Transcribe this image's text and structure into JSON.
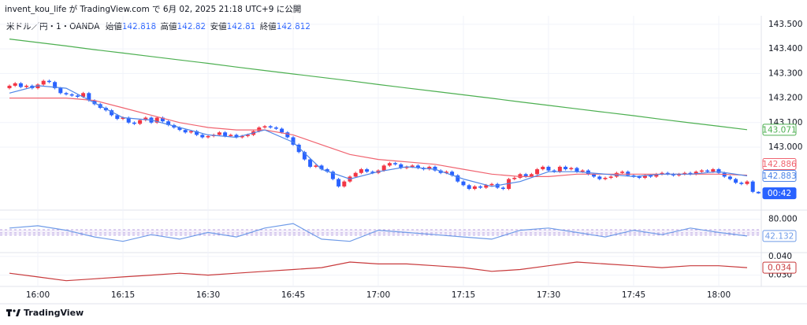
{
  "header": "invent_kou_life が TradingView.com で 6月 02, 2025 21:18 UTC+9 に公開",
  "footer": "TradingView",
  "chart_data": [
    {
      "type": "candlestick",
      "title": "米ドル／円・1・OANDA",
      "ohlc_labels": [
        "始値",
        "高値",
        "安値",
        "終値"
      ],
      "up_color": "#f23645",
      "down_color": "#2962ff",
      "countdown": "00:42",
      "grid": true,
      "x": [
        "15:55",
        "15:56",
        "15:57",
        "15:58",
        "15:59",
        "16:00",
        "16:01",
        "16:02",
        "16:03",
        "16:04",
        "16:05",
        "16:06",
        "16:07",
        "16:08",
        "16:09",
        "16:10",
        "16:11",
        "16:12",
        "16:13",
        "16:14",
        "16:15",
        "16:16",
        "16:17",
        "16:18",
        "16:19",
        "16:20",
        "16:21",
        "16:22",
        "16:23",
        "16:24",
        "16:25",
        "16:26",
        "16:27",
        "16:28",
        "16:29",
        "16:30",
        "16:31",
        "16:32",
        "16:33",
        "16:34",
        "16:35",
        "16:36",
        "16:37",
        "16:38",
        "16:39",
        "16:40",
        "16:41",
        "16:42",
        "16:43",
        "16:44",
        "16:45",
        "16:46",
        "16:47",
        "16:48",
        "16:49",
        "16:50",
        "16:51",
        "16:52",
        "16:53",
        "16:54",
        "16:55",
        "16:56",
        "16:57",
        "16:58",
        "16:59",
        "17:00",
        "17:01",
        "17:02",
        "17:03",
        "17:04",
        "17:05",
        "17:06",
        "17:07",
        "17:08",
        "17:09",
        "17:10",
        "17:11",
        "17:12",
        "17:13",
        "17:14",
        "17:15",
        "17:16",
        "17:17",
        "17:18",
        "17:19",
        "17:20",
        "17:21",
        "17:22",
        "17:23",
        "17:24",
        "17:25",
        "17:26",
        "17:27",
        "17:28",
        "17:29",
        "17:30",
        "17:31",
        "17:32",
        "17:33",
        "17:34",
        "17:35",
        "17:36",
        "17:37",
        "17:38",
        "17:39",
        "17:40",
        "17:41",
        "17:42",
        "17:43",
        "17:44",
        "17:45",
        "17:46",
        "17:47",
        "17:48",
        "17:49",
        "17:50",
        "17:51",
        "17:52",
        "17:53",
        "17:54",
        "17:55",
        "17:56",
        "17:57",
        "17:58",
        "17:59",
        "18:00",
        "18:01",
        "18:02",
        "18:03",
        "18:04",
        "18:05",
        "18:06",
        "18:07"
      ],
      "open": [
        143.24,
        143.25,
        143.26,
        143.245,
        143.25,
        143.24,
        143.255,
        143.27,
        143.265,
        143.24,
        143.22,
        143.215,
        143.21,
        143.205,
        143.22,
        143.19,
        143.175,
        143.16,
        143.15,
        143.13,
        143.115,
        143.12,
        143.1,
        143.095,
        143.11,
        143.12,
        143.1,
        143.12,
        143.105,
        143.09,
        143.08,
        143.07,
        143.06,
        143.065,
        143.05,
        143.04,
        143.045,
        143.05,
        143.06,
        143.045,
        143.05,
        143.04,
        143.045,
        143.05,
        143.065,
        143.08,
        143.085,
        143.08,
        143.075,
        143.06,
        143.04,
        143.01,
        142.98,
        142.95,
        142.92,
        142.925,
        142.91,
        142.9,
        142.87,
        142.84,
        142.86,
        142.88,
        142.895,
        142.91,
        142.9,
        142.895,
        142.905,
        142.925,
        142.935,
        142.93,
        142.915,
        142.92,
        142.925,
        142.915,
        142.91,
        142.92,
        142.905,
        142.895,
        142.9,
        142.885,
        142.86,
        142.845,
        142.83,
        142.84,
        142.835,
        142.845,
        142.85,
        142.835,
        142.83,
        142.87,
        142.875,
        142.89,
        142.88,
        142.89,
        142.91,
        142.92,
        142.905,
        142.9,
        142.92,
        142.91,
        142.915,
        142.9,
        142.905,
        142.89,
        142.88,
        142.87,
        142.875,
        142.88,
        142.895,
        142.9,
        142.885,
        142.88,
        142.875,
        142.885,
        142.88,
        142.89,
        142.895,
        142.89,
        142.885,
        142.89,
        142.895,
        142.89,
        142.9,
        142.905,
        142.9,
        142.91,
        142.895,
        142.88,
        142.87,
        142.855,
        142.85,
        142.86,
        142.818
      ],
      "high": [
        143.255,
        143.265,
        143.265,
        143.255,
        143.255,
        143.26,
        143.275,
        143.275,
        143.27,
        143.245,
        143.225,
        143.22,
        143.215,
        143.225,
        143.225,
        143.195,
        143.18,
        143.165,
        143.155,
        143.135,
        143.125,
        143.125,
        143.105,
        143.115,
        143.125,
        143.125,
        143.125,
        143.125,
        143.11,
        143.095,
        143.085,
        143.075,
        143.07,
        143.07,
        143.055,
        143.05,
        143.055,
        143.065,
        143.065,
        143.055,
        143.055,
        143.05,
        143.055,
        143.07,
        143.085,
        143.09,
        143.09,
        143.085,
        143.08,
        143.065,
        143.045,
        143.015,
        142.985,
        142.955,
        142.93,
        142.93,
        142.915,
        142.905,
        142.875,
        142.865,
        142.885,
        142.9,
        142.915,
        142.915,
        142.905,
        142.91,
        142.93,
        142.94,
        142.94,
        142.935,
        142.925,
        142.93,
        142.93,
        142.92,
        142.925,
        142.925,
        142.91,
        142.905,
        142.905,
        142.89,
        142.865,
        142.85,
        142.845,
        142.845,
        142.85,
        142.855,
        142.855,
        142.84,
        142.875,
        142.88,
        142.895,
        142.895,
        142.895,
        142.915,
        142.925,
        142.925,
        142.91,
        142.925,
        142.925,
        142.92,
        142.92,
        142.91,
        142.91,
        142.895,
        142.885,
        142.88,
        142.885,
        142.9,
        142.905,
        142.905,
        142.89,
        142.885,
        142.89,
        142.89,
        142.895,
        142.9,
        142.9,
        142.895,
        142.895,
        142.9,
        142.9,
        142.905,
        142.91,
        142.91,
        142.915,
        142.915,
        142.9,
        142.885,
        142.875,
        142.86,
        142.865,
        142.865,
        142.82
      ],
      "low": [
        143.235,
        143.245,
        143.24,
        143.24,
        143.235,
        143.235,
        143.25,
        143.26,
        143.235,
        143.215,
        143.21,
        143.205,
        143.2,
        143.2,
        143.185,
        143.17,
        143.155,
        143.145,
        143.125,
        143.11,
        143.11,
        143.095,
        143.09,
        143.09,
        143.105,
        143.095,
        143.095,
        143.1,
        143.085,
        143.075,
        143.065,
        143.055,
        143.055,
        143.045,
        143.035,
        143.035,
        143.04,
        143.045,
        143.04,
        143.04,
        143.035,
        143.035,
        143.04,
        143.045,
        143.06,
        143.075,
        143.075,
        143.07,
        143.055,
        143.035,
        143.005,
        142.975,
        142.945,
        142.915,
        142.915,
        142.905,
        142.895,
        142.865,
        142.835,
        142.835,
        142.855,
        142.875,
        142.89,
        142.895,
        142.89,
        142.89,
        142.9,
        142.92,
        142.925,
        142.91,
        142.91,
        142.915,
        142.91,
        142.905,
        142.905,
        142.9,
        142.89,
        142.89,
        142.88,
        142.855,
        142.84,
        142.825,
        142.825,
        142.83,
        142.83,
        142.84,
        142.83,
        142.825,
        142.825,
        142.865,
        142.87,
        142.875,
        142.875,
        142.885,
        142.905,
        142.9,
        142.895,
        142.895,
        142.905,
        142.905,
        142.895,
        142.895,
        142.885,
        142.875,
        142.865,
        142.865,
        142.87,
        142.875,
        142.89,
        142.88,
        142.875,
        142.87,
        142.87,
        142.875,
        142.875,
        142.885,
        142.885,
        142.88,
        142.88,
        142.885,
        142.885,
        142.885,
        142.895,
        142.895,
        142.895,
        142.89,
        142.875,
        142.865,
        142.85,
        142.845,
        142.845,
        142.813,
        142.81
      ],
      "close": [
        143.25,
        143.26,
        143.245,
        143.25,
        143.24,
        143.255,
        143.27,
        143.265,
        143.24,
        143.22,
        143.215,
        143.21,
        143.205,
        143.22,
        143.19,
        143.175,
        143.16,
        143.15,
        143.13,
        143.115,
        143.12,
        143.1,
        143.095,
        143.11,
        143.12,
        143.1,
        143.12,
        143.105,
        143.09,
        143.08,
        143.07,
        143.06,
        143.065,
        143.05,
        143.04,
        143.045,
        143.05,
        143.06,
        143.045,
        143.05,
        143.04,
        143.045,
        143.05,
        143.065,
        143.08,
        143.085,
        143.08,
        143.075,
        143.06,
        143.04,
        143.01,
        142.98,
        142.95,
        142.92,
        142.925,
        142.91,
        142.9,
        142.87,
        142.84,
        142.86,
        142.88,
        142.895,
        142.91,
        142.9,
        142.895,
        142.905,
        142.925,
        142.935,
        142.93,
        142.915,
        142.92,
        142.925,
        142.915,
        142.91,
        142.92,
        142.905,
        142.895,
        142.9,
        142.885,
        142.86,
        142.845,
        142.83,
        142.84,
        142.835,
        142.845,
        142.85,
        142.835,
        142.83,
        142.87,
        142.875,
        142.89,
        142.88,
        142.89,
        142.91,
        142.92,
        142.905,
        142.9,
        142.92,
        142.91,
        142.915,
        142.9,
        142.905,
        142.89,
        142.88,
        142.87,
        142.875,
        142.88,
        142.895,
        142.9,
        142.885,
        142.88,
        142.875,
        142.885,
        142.88,
        142.89,
        142.895,
        142.89,
        142.885,
        142.89,
        142.895,
        142.89,
        142.9,
        142.905,
        142.9,
        142.91,
        142.895,
        142.88,
        142.87,
        142.855,
        142.85,
        142.86,
        142.818,
        142.812
      ],
      "series": [
        {
          "color": "#4caf50",
          "x": [
            "15:55",
            "16:00",
            "16:05",
            "16:10",
            "16:15",
            "16:20",
            "16:25",
            "16:30",
            "16:35",
            "16:40",
            "16:45",
            "16:50",
            "16:55",
            "17:00",
            "17:05",
            "17:10",
            "17:15",
            "17:20",
            "17:25",
            "17:30",
            "17:35",
            "17:40",
            "17:45",
            "17:50",
            "17:55",
            "18:00",
            "18:05"
          ],
          "values": [
            143.44,
            143.426,
            143.412,
            143.397,
            143.383,
            143.369,
            143.355,
            143.341,
            143.326,
            143.312,
            143.298,
            143.284,
            143.27,
            143.255,
            143.241,
            143.227,
            143.213,
            143.199,
            143.184,
            143.17,
            143.156,
            143.142,
            143.128,
            143.113,
            143.099,
            143.085,
            143.071
          ]
        },
        {
          "color": "#f06470",
          "x": [
            "15:55",
            "16:00",
            "16:05",
            "16:10",
            "16:15",
            "16:20",
            "16:25",
            "16:30",
            "16:35",
            "16:40",
            "16:45",
            "16:50",
            "16:55",
            "17:00",
            "17:05",
            "17:10",
            "17:15",
            "17:20",
            "17:25",
            "17:30",
            "17:35",
            "17:40",
            "17:45",
            "17:50",
            "17:55",
            "18:00",
            "18:05"
          ],
          "values": [
            143.2,
            143.2,
            143.2,
            143.19,
            143.16,
            143.13,
            143.1,
            143.08,
            143.07,
            143.07,
            143.05,
            143.01,
            142.97,
            142.95,
            142.94,
            142.93,
            142.91,
            142.89,
            142.88,
            142.88,
            142.89,
            142.89,
            142.89,
            142.89,
            142.89,
            142.89,
            142.886
          ]
        },
        {
          "color": "#4f86e8",
          "x": [
            "15:55",
            "16:00",
            "16:05",
            "16:10",
            "16:15",
            "16:20",
            "16:25",
            "16:30",
            "16:35",
            "16:40",
            "16:45",
            "16:50",
            "16:55",
            "17:00",
            "17:05",
            "17:10",
            "17:15",
            "17:20",
            "17:25",
            "17:30",
            "17:35",
            "17:40",
            "17:45",
            "17:50",
            "17:55",
            "18:00",
            "18:05"
          ],
          "values": [
            143.22,
            143.25,
            143.24,
            143.18,
            143.12,
            143.11,
            143.08,
            143.05,
            143.04,
            143.07,
            143.02,
            142.91,
            142.87,
            142.9,
            142.92,
            142.91,
            142.87,
            142.84,
            142.86,
            142.9,
            142.9,
            142.89,
            142.88,
            142.89,
            142.89,
            142.9,
            142.883
          ]
        }
      ],
      "ylim": [
        142.75,
        143.535
      ],
      "yticks": [
        {
          "value": 143.5,
          "label": "143.500"
        },
        {
          "value": 143.4,
          "label": "143.400"
        },
        {
          "value": 143.3,
          "label": "143.300"
        },
        {
          "value": 143.2,
          "label": "143.200"
        },
        {
          "value": 143.1,
          "label": "143.100"
        },
        {
          "value": 143.0,
          "label": "143.000"
        }
      ],
      "xticks": [
        "16:00",
        "16:15",
        "16:30",
        "16:45",
        "17:00",
        "17:15",
        "17:30",
        "17:45",
        "18:00"
      ]
    },
    {
      "type": "line",
      "grid": true,
      "level_color": "#9c7bd6",
      "levels": [
        56,
        49,
        44
      ],
      "series": [
        {
          "color": "#6f9be8",
          "x": [
            "15:55",
            "16:00",
            "16:05",
            "16:10",
            "16:15",
            "16:20",
            "16:25",
            "16:30",
            "16:35",
            "16:40",
            "16:45",
            "16:50",
            "16:55",
            "17:00",
            "17:05",
            "17:10",
            "17:15",
            "17:20",
            "17:25",
            "17:30",
            "17:35",
            "17:40",
            "17:45",
            "17:50",
            "17:55",
            "18:00",
            "18:05"
          ],
          "values": [
            60,
            65,
            55,
            40,
            30,
            45,
            35,
            50,
            40,
            60,
            70,
            35,
            30,
            55,
            50,
            45,
            40,
            35,
            55,
            60,
            50,
            40,
            55,
            45,
            60,
            50,
            42.132
          ]
        }
      ],
      "ylim": [
        10,
        95
      ],
      "yticks": [
        {
          "value": 80,
          "label": "80.000"
        }
      ]
    },
    {
      "type": "line",
      "grid": true,
      "series": [
        {
          "color": "#c8393b",
          "x": [
            "15:55",
            "16:00",
            "16:05",
            "16:10",
            "16:15",
            "16:20",
            "16:25",
            "16:30",
            "16:35",
            "16:40",
            "16:45",
            "16:50",
            "16:55",
            "17:00",
            "17:05",
            "17:10",
            "17:15",
            "17:20",
            "17:25",
            "17:30",
            "17:35",
            "17:40",
            "17:45",
            "17:50",
            "17:55",
            "18:00",
            "18:05"
          ],
          "values": [
            0.031,
            0.029,
            0.027,
            0.028,
            0.029,
            0.03,
            0.031,
            0.03,
            0.031,
            0.032,
            0.033,
            0.034,
            0.037,
            0.036,
            0.036,
            0.035,
            0.034,
            0.032,
            0.033,
            0.035,
            0.037,
            0.036,
            0.035,
            0.034,
            0.035,
            0.035,
            0.034
          ]
        }
      ],
      "ylim": [
        0.0256,
        0.0408
      ],
      "yticks": [
        {
          "value": 0.04,
          "label": "0.040"
        },
        {
          "value": 0.03,
          "label": "0.030"
        }
      ]
    }
  ]
}
